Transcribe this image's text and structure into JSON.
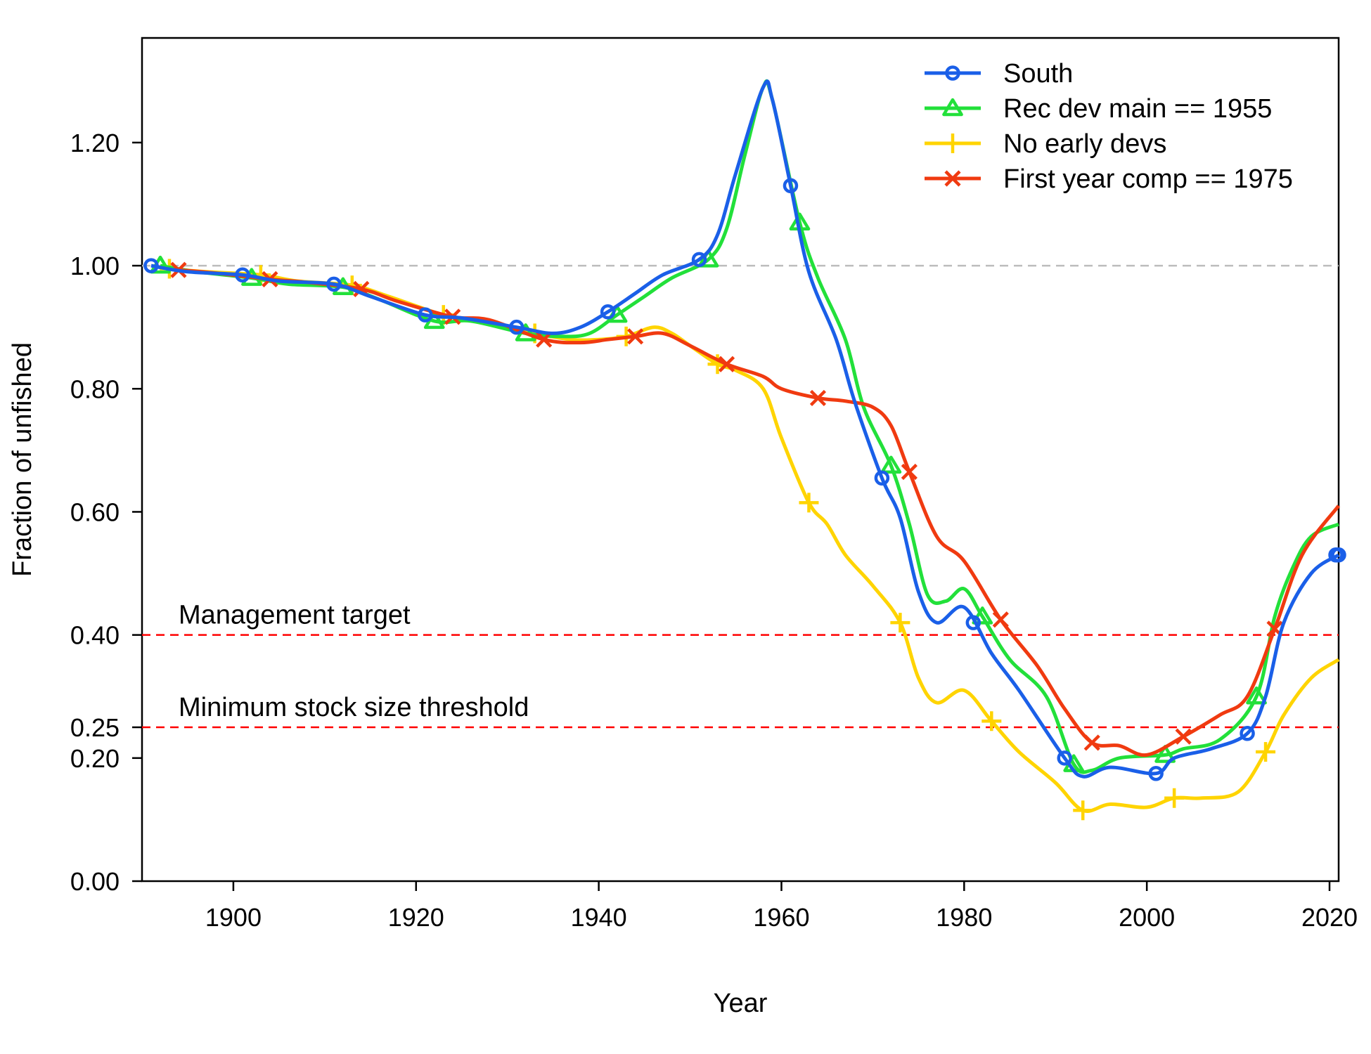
{
  "chart_data": {
    "type": "line",
    "title": "",
    "xlabel": "Year",
    "ylabel": "Fraction of unfished",
    "xlim": [
      1890,
      2021
    ],
    "ylim": [
      0,
      1.37
    ],
    "x_ticks": [
      "1900",
      "1920",
      "1940",
      "1960",
      "1980",
      "2000",
      "2020"
    ],
    "y_ticks": [
      "0.00",
      "0.20",
      "0.25",
      "0.40",
      "0.60",
      "0.80",
      "1.00",
      "1.20"
    ],
    "legend_position": "top-right",
    "grid": false,
    "reference_lines": [
      {
        "y": 1.0,
        "label": "",
        "color": "#bdbdbd",
        "style": "dashed"
      },
      {
        "y": 0.4,
        "label": "Management target",
        "color": "#ff0000",
        "style": "dashed"
      },
      {
        "y": 0.25,
        "label": "Minimum stock size threshold",
        "color": "#ff0000",
        "style": "dashed"
      }
    ],
    "series": [
      {
        "name": "South",
        "color": "#1a5fe8",
        "marker": "circle",
        "x": [
          1891,
          1895,
          1901,
          1905,
          1911,
          1915,
          1921,
          1925,
          1931,
          1935,
          1938,
          1941,
          1944,
          1947,
          1951,
          1953,
          1955,
          1958,
          1959,
          1961,
          1963,
          1966,
          1968,
          1971,
          1973,
          1975,
          1977,
          1980,
          1983,
          1986,
          1991,
          1993,
          1996,
          2001,
          2003,
          2007,
          2011,
          2013,
          2015,
          2018,
          2021
        ],
        "y": [
          1.0,
          0.99,
          0.985,
          0.975,
          0.97,
          0.95,
          0.92,
          0.915,
          0.9,
          0.89,
          0.9,
          0.925,
          0.955,
          0.985,
          1.01,
          1.05,
          1.15,
          1.29,
          1.27,
          1.13,
          0.99,
          0.88,
          0.78,
          0.655,
          0.59,
          0.47,
          0.42,
          0.445,
          0.37,
          0.31,
          0.2,
          0.17,
          0.185,
          0.175,
          0.2,
          0.215,
          0.24,
          0.3,
          0.42,
          0.5,
          0.53
        ]
      },
      {
        "name": "Rec dev main == 1955",
        "color": "#22e03a",
        "marker": "triangle",
        "x": [
          1892,
          1896,
          1902,
          1906,
          1912,
          1916,
          1922,
          1926,
          1932,
          1936,
          1939,
          1942,
          1945,
          1948,
          1952,
          1954,
          1956,
          1958,
          1959,
          1962,
          1964,
          1967,
          1969,
          1972,
          1974,
          1976,
          1978,
          1980,
          1982,
          1985,
          1989,
          1992,
          1994,
          1997,
          2002,
          2004,
          2008,
          2012,
          2014,
          2016,
          2018,
          2021
        ],
        "y": [
          1.0,
          0.99,
          0.98,
          0.97,
          0.965,
          0.945,
          0.91,
          0.91,
          0.89,
          0.885,
          0.89,
          0.92,
          0.95,
          0.98,
          1.01,
          1.06,
          1.18,
          1.29,
          1.27,
          1.07,
          0.98,
          0.88,
          0.77,
          0.675,
          0.58,
          0.465,
          0.455,
          0.475,
          0.43,
          0.36,
          0.3,
          0.19,
          0.18,
          0.2,
          0.205,
          0.215,
          0.23,
          0.3,
          0.43,
          0.51,
          0.56,
          0.58
        ]
      },
      {
        "name": "No early devs",
        "color": "#ffd400",
        "marker": "plus",
        "x": [
          1893,
          1897,
          1903,
          1907,
          1913,
          1917,
          1923,
          1927,
          1933,
          1937,
          1940,
          1943,
          1946,
          1948,
          1950,
          1953,
          1955,
          1958,
          1960,
          1963,
          1965,
          1967,
          1970,
          1973,
          1975,
          1977,
          1980,
          1983,
          1986,
          1990,
          1993,
          1996,
          2000,
          2003,
          2006,
          2010,
          2013,
          2015,
          2018,
          2021
        ],
        "y": [
          0.995,
          0.99,
          0.985,
          0.975,
          0.968,
          0.95,
          0.92,
          0.91,
          0.89,
          0.88,
          0.88,
          0.885,
          0.9,
          0.89,
          0.87,
          0.84,
          0.83,
          0.8,
          0.72,
          0.615,
          0.58,
          0.53,
          0.48,
          0.42,
          0.33,
          0.29,
          0.31,
          0.26,
          0.21,
          0.16,
          0.115,
          0.125,
          0.12,
          0.135,
          0.135,
          0.145,
          0.21,
          0.27,
          0.33,
          0.36
        ]
      },
      {
        "name": "First year comp == 1975",
        "color": "#f03a10",
        "marker": "x",
        "x": [
          1894,
          1898,
          1904,
          1908,
          1914,
          1918,
          1924,
          1928,
          1934,
          1938,
          1941,
          1944,
          1947,
          1950,
          1954,
          1958,
          1960,
          1964,
          1967,
          1970,
          1972,
          1974,
          1977,
          1980,
          1984,
          1988,
          1991,
          1994,
          1997,
          2000,
          2004,
          2008,
          2011,
          2014,
          2017,
          2021
        ],
        "y": [
          0.993,
          0.988,
          0.978,
          0.973,
          0.962,
          0.942,
          0.917,
          0.912,
          0.88,
          0.875,
          0.88,
          0.885,
          0.89,
          0.87,
          0.84,
          0.82,
          0.8,
          0.785,
          0.78,
          0.77,
          0.74,
          0.665,
          0.56,
          0.52,
          0.425,
          0.35,
          0.28,
          0.225,
          0.22,
          0.205,
          0.235,
          0.27,
          0.3,
          0.41,
          0.53,
          0.61
        ]
      }
    ]
  }
}
